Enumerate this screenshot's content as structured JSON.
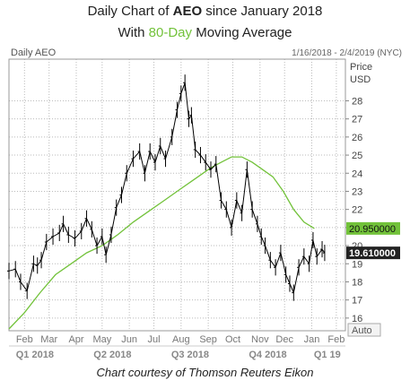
{
  "header": {
    "title_prefix": "Daily Chart of ",
    "ticker": "AEO",
    "title_suffix": " since January 2018",
    "subtitle_prefix": "With ",
    "subtitle_highlight": "80-Day",
    "subtitle_suffix": " Moving Average"
  },
  "panel": {
    "label": "Daily AEO",
    "date_range": "1/16/2018 - 2/4/2019 (NYC)",
    "axis_title_line1": "Price",
    "axis_title_line2": "USD",
    "auto_label": "Auto"
  },
  "footer": {
    "credit": "Chart courtesy of Thomson Reuters Eikon"
  },
  "colors": {
    "price": "#000000",
    "ma": "#72c23a",
    "grid": "#bbbbbb",
    "badge_dark": "#222222",
    "badge_green": "#72c23a"
  },
  "chart_data": {
    "type": "line",
    "title": "Daily Chart of AEO since January 2018",
    "ylabel": "Price USD",
    "ylim": [
      15,
      30
    ],
    "yticks": [
      16,
      17,
      18,
      19,
      20,
      21,
      22,
      23,
      24,
      25,
      26,
      27,
      28
    ],
    "grid": true,
    "months": [
      {
        "label": "Feb",
        "x": 0.6
      },
      {
        "label": "Mar",
        "x": 1.55
      },
      {
        "label": "Apr",
        "x": 2.6
      },
      {
        "label": "May",
        "x": 3.6
      },
      {
        "label": "Jun",
        "x": 4.65
      },
      {
        "label": "Jul",
        "x": 5.6
      },
      {
        "label": "Aug",
        "x": 6.65
      },
      {
        "label": "Sep",
        "x": 7.7
      },
      {
        "label": "Oct",
        "x": 8.65
      },
      {
        "label": "Nov",
        "x": 9.7
      },
      {
        "label": "Dec",
        "x": 10.65
      },
      {
        "label": "Jan",
        "x": 11.7
      },
      {
        "label": "Feb",
        "x": 12.65
      }
    ],
    "quarters": [
      {
        "label": "Q1 2018",
        "x": 1.0
      },
      {
        "label": "Q2 2018",
        "x": 4.0
      },
      {
        "label": "Q3 2018",
        "x": 7.0
      },
      {
        "label": "Q4 2018",
        "x": 10.0
      },
      {
        "label": "Q1 19",
        "x": 12.3
      }
    ],
    "xlim": [
      0,
      13.0
    ],
    "series": [
      {
        "name": "AEO",
        "x": [
          0.0,
          0.25,
          0.45,
          0.7,
          0.95,
          1.1,
          1.25,
          1.45,
          1.7,
          1.95,
          2.1,
          2.3,
          2.55,
          2.8,
          3.0,
          3.2,
          3.4,
          3.6,
          3.75,
          3.95,
          4.15,
          4.35,
          4.55,
          4.8,
          5.05,
          5.25,
          5.45,
          5.65,
          5.85,
          6.05,
          6.3,
          6.5,
          6.65,
          6.8,
          6.95,
          7.05,
          7.2,
          7.4,
          7.6,
          7.8,
          8.0,
          8.2,
          8.4,
          8.6,
          8.8,
          9.0,
          9.2,
          9.4,
          9.6,
          9.75,
          9.9,
          10.1,
          10.3,
          10.5,
          10.7,
          10.85,
          11.0,
          11.2,
          11.4,
          11.6,
          11.75,
          11.9,
          12.1,
          12.2
        ],
        "values": [
          18.6,
          18.7,
          18.0,
          17.5,
          19.0,
          18.9,
          19.2,
          20.2,
          20.5,
          20.7,
          21.2,
          20.6,
          20.4,
          20.8,
          21.5,
          20.9,
          20.0,
          20.5,
          19.5,
          20.6,
          22.1,
          22.8,
          24.0,
          24.8,
          25.2,
          24.0,
          25.2,
          24.6,
          25.5,
          24.8,
          26.0,
          27.5,
          28.4,
          29.0,
          27.0,
          27.2,
          25.3,
          25.0,
          24.6,
          24.2,
          24.5,
          22.5,
          22.0,
          21.0,
          22.5,
          21.8,
          24.2,
          22.0,
          21.2,
          20.5,
          20.0,
          19.2,
          18.8,
          19.6,
          18.4,
          17.9,
          17.4,
          18.8,
          19.4,
          19.0,
          20.3,
          19.4,
          19.8,
          19.6
        ]
      },
      {
        "name": "80-Day Moving Average",
        "x": [
          0.0,
          0.6,
          1.2,
          1.8,
          2.4,
          3.0,
          3.6,
          4.2,
          4.8,
          5.4,
          6.0,
          6.6,
          7.2,
          7.8,
          8.2,
          8.6,
          9.0,
          9.4,
          9.8,
          10.2,
          10.6,
          11.0,
          11.4,
          11.8
        ],
        "values": [
          15.4,
          16.3,
          17.4,
          18.4,
          19.0,
          19.6,
          20.0,
          20.6,
          21.3,
          21.9,
          22.5,
          23.1,
          23.7,
          24.3,
          24.6,
          24.9,
          24.9,
          24.6,
          24.2,
          23.8,
          23.0,
          22.0,
          21.3,
          20.95
        ]
      }
    ],
    "last_values": {
      "ma": "20.950000",
      "price": "19.610000"
    }
  }
}
